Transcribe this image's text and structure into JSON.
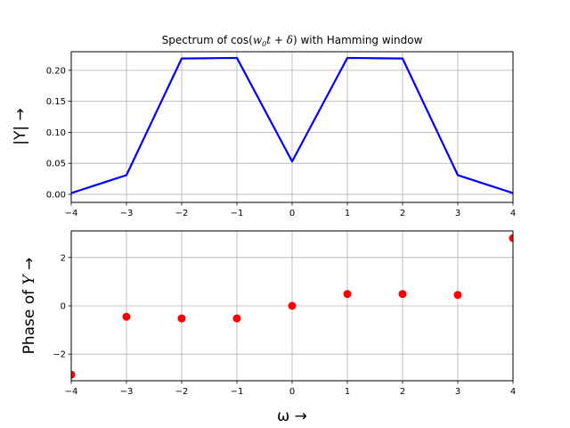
{
  "chart_data": [
    {
      "type": "line",
      "title": "Spectrum of cos(w0t + δ) with Hamming window",
      "title_parts": {
        "pre": "Spectrum of cos(",
        "w": "w",
        "sub": "0",
        "t": "t",
        "plus": " + ",
        "delta": "δ",
        "post": ") with Hamming window"
      },
      "xlabel": "",
      "ylabel": "|Y| →",
      "x": [
        -4,
        -3,
        -2,
        -1,
        0,
        1,
        2,
        3,
        4
      ],
      "y": [
        0.002,
        0.031,
        0.219,
        0.22,
        0.053,
        0.22,
        0.219,
        0.031,
        0.002
      ],
      "xlim": [
        -4,
        4
      ],
      "ylim": [
        -0.013,
        0.23
      ],
      "xticks": [
        -4,
        -3,
        -2,
        -1,
        0,
        1,
        2,
        3,
        4
      ],
      "xtick_labels": [
        "−4",
        "−3",
        "−2",
        "−1",
        "0",
        "1",
        "2",
        "3",
        "4"
      ],
      "yticks": [
        0.0,
        0.05,
        0.1,
        0.15,
        0.2
      ],
      "ytick_labels": [
        "0.00",
        "0.05",
        "0.10",
        "0.15",
        "0.20"
      ],
      "grid": true,
      "color": "#0000ff"
    },
    {
      "type": "scatter",
      "title": "",
      "xlabel": "ω →",
      "ylabel": "Phase of Y →",
      "ylabel_parts": {
        "pre": "Phase of ",
        "var": "Y",
        "post": " →"
      },
      "x": [
        -4,
        -3,
        -2,
        -1,
        0,
        1,
        2,
        3,
        4
      ],
      "y": [
        -2.85,
        -0.45,
        -0.52,
        -0.52,
        0.0,
        0.49,
        0.49,
        0.45,
        2.8
      ],
      "xlim": [
        -4,
        4
      ],
      "ylim": [
        -3.1,
        3.1
      ],
      "xticks": [
        -4,
        -3,
        -2,
        -1,
        0,
        1,
        2,
        3,
        4
      ],
      "xtick_labels": [
        "−4",
        "−3",
        "−2",
        "−1",
        "0",
        "1",
        "2",
        "3",
        "4"
      ],
      "yticks": [
        -2,
        0,
        2
      ],
      "ytick_labels": [
        "−2",
        "0",
        "2"
      ],
      "grid": true,
      "color": "#ff0000"
    }
  ]
}
